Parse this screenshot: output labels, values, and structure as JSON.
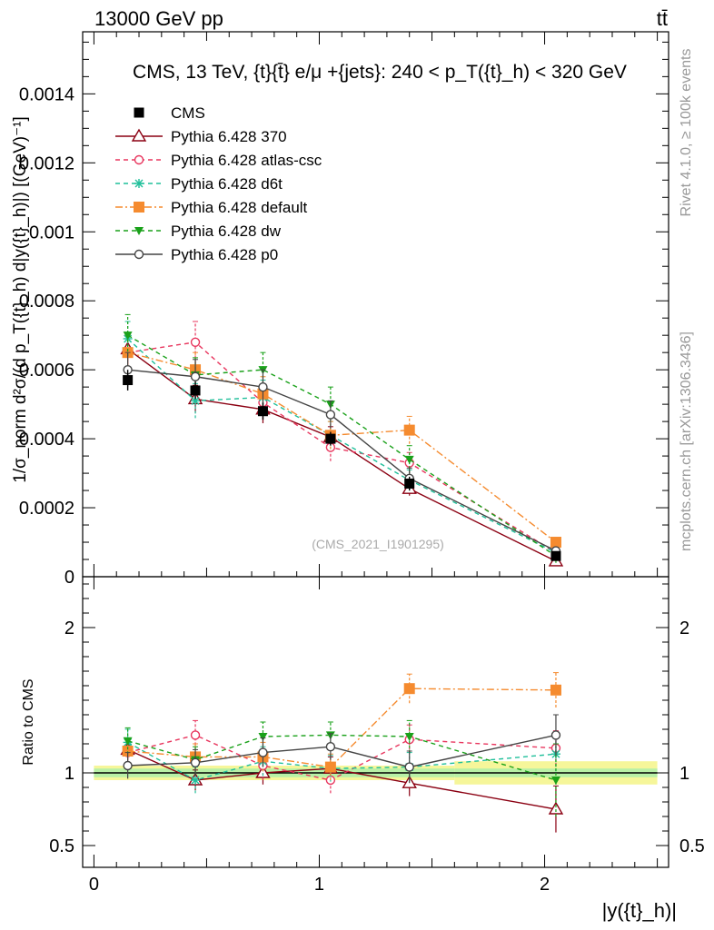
{
  "header": {
    "left": "13000 GeV pp",
    "right": "tt̄"
  },
  "side_labels": {
    "rivet": "Rivet 4.1.0, ≥ 100k events",
    "mcplots": "mcplots.cern.ch [arXiv:1306.3436]"
  },
  "plot_title": "CMS, 13 TeV, {t}{t̄} e/μ +{jets}: 240 <  p_T({t}_h) < 320 GeV",
  "watermark": "(CMS_2021_I1901295)",
  "ylabel_main": "1/σ_norm d²σ/(d p_T({t}_h) d|y({t}_h)|) [(GeV)⁻¹]",
  "ylabel_ratio": "Ratio to CMS",
  "xlabel": "|y({t}_h)|",
  "chart_data": [
    {
      "type": "line",
      "panel": "main",
      "xlim": [
        -0.05,
        2.55
      ],
      "ylim": [
        0,
        0.00158
      ],
      "yticks": [
        {
          "v": 0,
          "label": "0"
        },
        {
          "v": 0.0002,
          "label": "0.0002"
        },
        {
          "v": 0.0004,
          "label": "0.0004"
        },
        {
          "v": 0.0006,
          "label": "0.0006"
        },
        {
          "v": 0.0008,
          "label": "0.0008"
        },
        {
          "v": 0.001,
          "label": "0.001"
        },
        {
          "v": 0.0012,
          "label": "0.0012"
        },
        {
          "v": 0.0014,
          "label": "0.0014"
        }
      ],
      "x": [
        0.15,
        0.45,
        0.75,
        1.05,
        1.4,
        2.05
      ],
      "data": {
        "name": "CMS",
        "values": [
          0.00057,
          0.00054,
          0.00048,
          0.0004,
          0.00027,
          6e-05
        ],
        "errors": [
          3e-05,
          2.5e-05,
          2.5e-05,
          2e-05,
          2e-05,
          1e-05
        ]
      },
      "series": [
        {
          "name": "Pythia 6.428 370",
          "color": "#8b0012",
          "dash": "",
          "marker": "triangle-open",
          "values": [
            0.00066,
            0.000515,
            0.000485,
            0.000405,
            0.000255,
            4.5e-05
          ],
          "errors": [
            4e-05,
            4e-05,
            4e-05,
            3e-05,
            2e-05,
            1e-05
          ]
        },
        {
          "name": "Pythia 6.428 atlas-csc",
          "color": "#e8365e",
          "dash": "5,4",
          "marker": "circle-open",
          "values": [
            0.00065,
            0.00068,
            0.000505,
            0.000375,
            0.00033,
            7e-05
          ],
          "errors": [
            5e-05,
            6e-05,
            5e-05,
            4e-05,
            3e-05,
            1e-05
          ]
        },
        {
          "name": "Pythia 6.428 d6t",
          "color": "#1fbf9a",
          "dash": "5,4",
          "marker": "star",
          "values": [
            0.00069,
            0.00051,
            0.00052,
            0.00041,
            0.00028,
            7e-05
          ],
          "errors": [
            5e-05,
            5e-05,
            5e-05,
            4e-05,
            3e-05,
            1e-05
          ]
        },
        {
          "name": "Pythia 6.428 default",
          "color": "#f58b2f",
          "dash": "8,3,2,3",
          "marker": "square",
          "values": [
            0.00065,
            0.0006,
            0.00053,
            0.00041,
            0.000425,
            0.0001
          ],
          "errors": [
            5e-05,
            5e-05,
            5e-05,
            4e-05,
            4e-05,
            1e-05
          ]
        },
        {
          "name": "Pythia 6.428 dw",
          "color": "#1aa11a",
          "dash": "5,4",
          "marker": "triangle-down",
          "values": [
            0.0007,
            0.000585,
            0.0006,
            0.0005,
            0.00034,
            6e-05
          ],
          "errors": [
            6e-05,
            5e-05,
            5e-05,
            5e-05,
            4e-05,
            2e-05
          ]
        },
        {
          "name": "Pythia 6.428 p0",
          "color": "#444444",
          "dash": "",
          "marker": "circle-open",
          "values": [
            0.0006,
            0.00058,
            0.00055,
            0.00047,
            0.000285,
            7.5e-05
          ],
          "errors": [
            5e-05,
            5e-05,
            5e-05,
            4e-05,
            3e-05,
            1e-05
          ]
        }
      ]
    },
    {
      "type": "line",
      "panel": "ratio",
      "xlim": [
        -0.05,
        2.55
      ],
      "ylim": [
        0.35,
        2.35
      ],
      "yticks": [
        {
          "v": 0.5,
          "label": "0.5"
        },
        {
          "v": 1,
          "label": "1"
        },
        {
          "v": 2,
          "label": "2"
        }
      ],
      "xticks": [
        {
          "v": 0,
          "label": "0"
        },
        {
          "v": 1,
          "label": "1"
        },
        {
          "v": 2,
          "label": "2"
        }
      ],
      "x": [
        0.15,
        0.45,
        0.75,
        1.05,
        1.4,
        2.05
      ],
      "band": {
        "x_edges": [
          0.0,
          1.6,
          2.5
        ],
        "inner": [
          0.03,
          0.03
        ],
        "outer": [
          0.05,
          0.08
        ]
      },
      "series": [
        {
          "name": "Pythia 6.428 370",
          "values": [
            1.16,
            0.95,
            1.0,
            1.03,
            0.93,
            0.75
          ],
          "errors": [
            0.07,
            0.07,
            0.08,
            0.08,
            0.09,
            0.16
          ]
        },
        {
          "name": "Pythia 6.428 atlas-csc",
          "values": [
            1.14,
            1.26,
            1.05,
            0.95,
            1.23,
            1.17
          ],
          "errors": [
            0.09,
            0.1,
            0.1,
            0.09,
            0.1,
            0.12
          ]
        },
        {
          "name": "Pythia 6.428 d6t",
          "values": [
            1.21,
            0.95,
            1.08,
            1.03,
            1.04,
            1.13
          ],
          "errors": [
            0.09,
            0.09,
            0.1,
            0.09,
            0.1,
            0.12
          ]
        },
        {
          "name": "Pythia 6.428 default",
          "values": [
            1.15,
            1.11,
            1.11,
            1.04,
            1.58,
            1.57
          ],
          "errors": [
            0.09,
            0.09,
            0.1,
            0.09,
            0.1,
            0.12
          ]
        },
        {
          "name": "Pythia 6.428 dw",
          "values": [
            1.22,
            1.09,
            1.25,
            1.26,
            1.25,
            0.95
          ],
          "errors": [
            0.09,
            0.09,
            0.1,
            0.09,
            0.11,
            0.25
          ]
        },
        {
          "name": "Pythia 6.428 p0",
          "values": [
            1.05,
            1.07,
            1.14,
            1.18,
            1.04,
            1.26
          ],
          "errors": [
            0.09,
            0.09,
            0.1,
            0.09,
            0.11,
            0.14
          ]
        }
      ]
    }
  ]
}
